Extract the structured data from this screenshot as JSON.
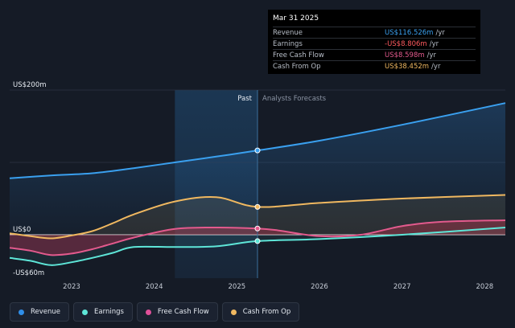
{
  "tooltip": {
    "title": "Mar 31 2025",
    "rows": [
      {
        "label": "Revenue",
        "value": "US$116.526m",
        "unit": "/yr",
        "color": "#3aa0ef"
      },
      {
        "label": "Earnings",
        "value": "-US$8.806m",
        "unit": "/yr",
        "color": "#ff5a5f"
      },
      {
        "label": "Free Cash Flow",
        "value": "US$8.598m",
        "unit": "/yr",
        "color": "#e35a8d"
      },
      {
        "label": "Cash From Op",
        "value": "US$38.452m",
        "unit": "/yr",
        "color": "#f0b860"
      }
    ]
  },
  "legend": [
    {
      "label": "Revenue",
      "color": "#2f8ee8"
    },
    {
      "label": "Earnings",
      "color": "#5ee6d8"
    },
    {
      "label": "Free Cash Flow",
      "color": "#e0509a"
    },
    {
      "label": "Cash From Op",
      "color": "#f0b860"
    }
  ],
  "chart_data": {
    "type": "line",
    "y_unit": "US$m",
    "ylim": [
      -60,
      200
    ],
    "y_tick_labels": [
      {
        "value": 200,
        "label": "US$200m"
      },
      {
        "value": 0,
        "label": "US$0"
      },
      {
        "value": -60,
        "label": "-US$60m"
      }
    ],
    "xlim": [
      2022.25,
      2028.25
    ],
    "x_ticks": [
      2023,
      2024,
      2025,
      2026,
      2027,
      2028
    ],
    "past_label": "Past",
    "forecast_label": "Analysts Forecasts",
    "past_end": 2025.25,
    "highlight_start": 2024.25,
    "series": [
      {
        "name": "Revenue",
        "color": "#3aa0ef",
        "x": [
          2022.25,
          2022.75,
          2023.25,
          2023.75,
          2024.25,
          2024.75,
          2025.25,
          2026.0,
          2027.0,
          2028.25
        ],
        "y": [
          78,
          82,
          85,
          92,
          100,
          108,
          116.5,
          130,
          152,
          182
        ]
      },
      {
        "name": "Earnings",
        "color": "#5ee6d8",
        "x": [
          2022.25,
          2022.5,
          2022.75,
          2023.0,
          2023.25,
          2023.5,
          2023.75,
          2024.25,
          2024.75,
          2025.25,
          2026.0,
          2027.0,
          2028.25
        ],
        "y": [
          -32,
          -36,
          -42,
          -38,
          -32,
          -25,
          -17,
          -17,
          -16,
          -8.8,
          -6,
          0,
          10
        ]
      },
      {
        "name": "Free Cash Flow",
        "color": "#e35a8d",
        "x": [
          2022.25,
          2022.5,
          2022.75,
          2023.0,
          2023.25,
          2023.5,
          2023.75,
          2024.25,
          2024.75,
          2025.25,
          2025.5,
          2026.0,
          2026.5,
          2027.0,
          2027.5,
          2028.25
        ],
        "y": [
          -18,
          -22,
          -28,
          -26,
          -20,
          -12,
          -4,
          8,
          10,
          8.6,
          6,
          -2,
          0,
          12,
          18,
          20
        ]
      },
      {
        "name": "Cash From Op",
        "color": "#f0b860",
        "x": [
          2022.25,
          2022.5,
          2022.75,
          2023.0,
          2023.25,
          2023.5,
          2023.75,
          2024.25,
          2024.75,
          2025.25,
          2026.0,
          2027.0,
          2028.25
        ],
        "y": [
          2,
          -2,
          -5,
          -1,
          5,
          16,
          28,
          46,
          52,
          38.5,
          44,
          50,
          55
        ]
      }
    ],
    "tooltip_x": 2025.25
  }
}
